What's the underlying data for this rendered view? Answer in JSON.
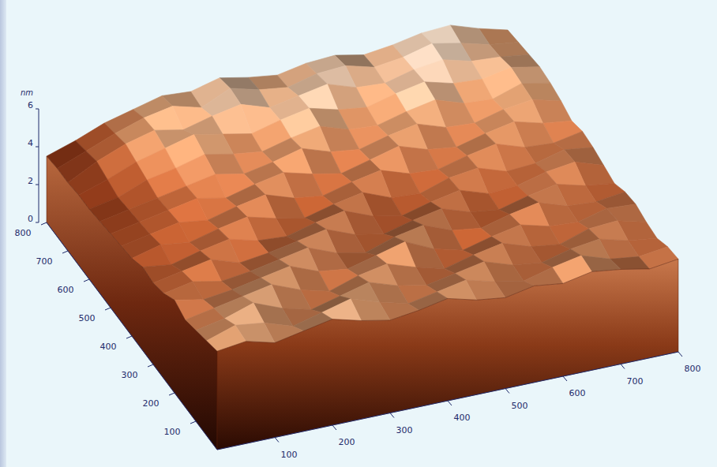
{
  "chart_data": {
    "type": "surface",
    "zlabel": "nm",
    "x": [
      0,
      50,
      100,
      150,
      200,
      250,
      300,
      350,
      400,
      450,
      500,
      550,
      600,
      650,
      700,
      750,
      800
    ],
    "y": [
      0,
      50,
      100,
      150,
      200,
      250,
      300,
      350,
      400,
      450,
      500,
      550,
      600,
      650,
      700,
      750,
      800
    ],
    "z": [
      [
        5.2,
        5.4,
        5.0,
        5.3,
        5.6,
        5.2,
        4.9,
        5.1,
        5.4,
        5.0,
        4.8,
        5.1,
        4.9,
        5.2,
        5.0,
        4.7,
        4.9
      ],
      [
        5.0,
        5.5,
        5.3,
        4.8,
        5.2,
        5.6,
        5.1,
        4.7,
        5.0,
        5.3,
        4.9,
        4.6,
        5.0,
        5.3,
        4.8,
        4.6,
        4.8
      ],
      [
        4.8,
        5.1,
        5.6,
        5.0,
        4.6,
        5.0,
        5.4,
        4.9,
        4.6,
        4.9,
        5.2,
        4.7,
        4.5,
        4.9,
        5.1,
        4.7,
        4.5
      ],
      [
        4.6,
        4.9,
        5.2,
        5.5,
        4.9,
        4.5,
        5.0,
        5.3,
        4.8,
        4.4,
        4.8,
        5.1,
        4.6,
        4.4,
        4.9,
        5.0,
        4.6
      ],
      [
        4.9,
        4.6,
        4.8,
        5.1,
        5.4,
        4.8,
        4.6,
        5.0,
        5.4,
        4.7,
        4.3,
        4.7,
        5.0,
        4.6,
        4.5,
        4.9,
        4.8
      ],
      [
        4.5,
        4.8,
        4.5,
        4.7,
        5.0,
        5.3,
        4.7,
        4.4,
        4.9,
        5.2,
        4.6,
        4.4,
        4.8,
        5.1,
        4.6,
        4.5,
        4.7
      ],
      [
        4.3,
        4.6,
        4.9,
        4.4,
        4.6,
        4.9,
        5.2,
        4.6,
        4.3,
        4.7,
        5.0,
        4.5,
        4.3,
        4.7,
        5.0,
        4.6,
        4.4
      ],
      [
        4.4,
        4.2,
        4.6,
        4.9,
        4.5,
        4.4,
        4.8,
        5.1,
        4.5,
        4.2,
        4.6,
        4.9,
        4.4,
        4.5,
        4.9,
        5.1,
        4.6
      ],
      [
        4.1,
        4.5,
        4.3,
        4.7,
        5.0,
        4.6,
        4.3,
        4.7,
        5.0,
        4.4,
        4.3,
        4.8,
        5.0,
        4.5,
        4.6,
        5.0,
        4.8
      ],
      [
        4.0,
        4.3,
        4.6,
        4.4,
        4.8,
        5.1,
        4.6,
        4.4,
        4.8,
        5.1,
        4.6,
        4.5,
        4.9,
        5.2,
        4.7,
        4.6,
        4.9
      ],
      [
        3.9,
        4.2,
        4.5,
        4.8,
        4.5,
        4.9,
        5.2,
        4.8,
        4.5,
        4.9,
        5.3,
        4.8,
        4.6,
        5.0,
        5.3,
        4.9,
        4.7
      ],
      [
        3.8,
        4.1,
        4.4,
        4.7,
        5.0,
        4.7,
        5.0,
        5.4,
        4.9,
        4.7,
        5.1,
        5.4,
        4.9,
        4.8,
        5.2,
        5.4,
        5.0
      ],
      [
        3.7,
        4.0,
        4.6,
        4.9,
        5.3,
        5.0,
        4.8,
        5.2,
        5.5,
        5.0,
        4.9,
        5.3,
        5.6,
        5.1,
        5.0,
        5.5,
        5.2
      ],
      [
        3.7,
        4.2,
        4.8,
        5.2,
        5.6,
        5.3,
        5.0,
        5.4,
        5.7,
        5.3,
        5.1,
        5.5,
        5.8,
        5.4,
        5.3,
        5.6,
        5.3
      ],
      [
        3.6,
        4.4,
        5.0,
        5.4,
        5.1,
        5.5,
        5.8,
        5.3,
        5.6,
        5.9,
        5.4,
        5.3,
        5.7,
        5.9,
        5.5,
        5.4,
        5.2
      ],
      [
        3.6,
        4.2,
        4.8,
        5.3,
        5.6,
        5.2,
        5.9,
        5.5,
        5.3,
        5.7,
        5.8,
        5.4,
        5.6,
        6.0,
        5.7,
        5.3,
        5.1
      ],
      [
        3.5,
        4.0,
        4.6,
        5.0,
        5.4,
        5.3,
        5.7,
        5.4,
        5.2,
        5.5,
        5.6,
        5.3,
        5.5,
        5.8,
        5.9,
        5.4,
        5.0
      ]
    ],
    "xlim": [
      0,
      800
    ],
    "xticks": [
      100,
      200,
      300,
      400,
      500,
      600,
      700,
      800
    ],
    "ylim": [
      0,
      800
    ],
    "yticks": [
      100,
      200,
      300,
      400,
      500,
      600,
      700,
      800
    ],
    "zlim": [
      0,
      6
    ],
    "zticks": [
      0,
      2,
      4,
      6
    ]
  }
}
